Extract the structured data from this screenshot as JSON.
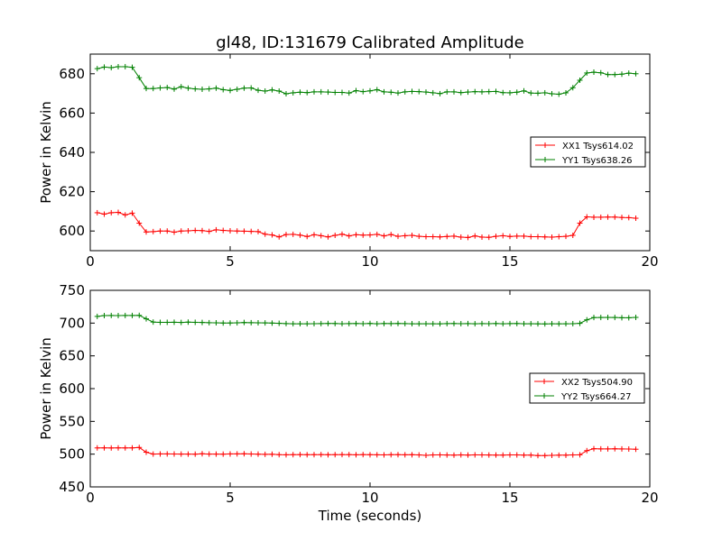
{
  "figure": {
    "title": "gl48, ID:131679 Calibrated Amplitude",
    "colors": {
      "red": "#ff0000",
      "green": "#008000",
      "axes": "#000000"
    }
  },
  "chart_data": [
    {
      "type": "line",
      "title": "gl48, ID:131679 Calibrated Amplitude",
      "xlabel": "",
      "ylabel": "Power in Kelvin",
      "xlim": [
        0,
        20
      ],
      "ylim": [
        590,
        690
      ],
      "xticks": [
        0,
        5,
        10,
        15,
        20
      ],
      "yticks": [
        600,
        620,
        640,
        660,
        680
      ],
      "grid": false,
      "legend_position": "right",
      "series": [
        {
          "name": "XX1 Tsys614.02",
          "color": "#ff0000",
          "marker": "plus",
          "x": [
            0.25,
            0.5,
            0.75,
            1.0,
            1.25,
            1.5,
            1.75,
            2.0,
            2.25,
            2.5,
            2.75,
            3.0,
            3.25,
            3.5,
            3.75,
            4.0,
            4.25,
            4.5,
            4.75,
            5.0,
            5.25,
            5.5,
            5.75,
            6.0,
            6.25,
            6.5,
            6.75,
            7.0,
            7.25,
            7.5,
            7.75,
            8.0,
            8.25,
            8.5,
            8.75,
            9.0,
            9.25,
            9.5,
            9.75,
            10.0,
            10.25,
            10.5,
            10.75,
            11.0,
            11.25,
            11.5,
            11.75,
            12.0,
            12.25,
            12.5,
            12.75,
            13.0,
            13.25,
            13.5,
            13.75,
            14.0,
            14.25,
            14.5,
            14.75,
            15.0,
            15.25,
            15.5,
            15.75,
            16.0,
            16.25,
            16.5,
            16.75,
            17.0,
            17.25,
            17.5,
            17.75,
            18.0,
            18.25,
            18.5,
            18.75,
            19.0,
            19.25,
            19.5
          ],
          "values": [
            609.3,
            608.6,
            609.3,
            609.5,
            608.2,
            609.1,
            604.0,
            599.5,
            599.7,
            600.0,
            600.0,
            599.4,
            600.0,
            600.1,
            600.3,
            600.2,
            599.8,
            600.6,
            600.3,
            600.1,
            600.0,
            599.9,
            599.8,
            599.7,
            598.4,
            598.0,
            597.0,
            598.2,
            598.3,
            597.9,
            597.2,
            598.1,
            597.6,
            597.0,
            597.8,
            598.4,
            597.5,
            598.1,
            597.9,
            598.0,
            598.3,
            597.5,
            598.2,
            597.3,
            597.6,
            597.8,
            597.3,
            597.1,
            597.1,
            597.0,
            597.2,
            597.4,
            596.9,
            596.7,
            597.5,
            596.9,
            596.8,
            597.3,
            597.6,
            597.2,
            597.4,
            597.4,
            597.1,
            597.1,
            597.0,
            596.9,
            597.1,
            597.3,
            597.8,
            604.0,
            607.2,
            607.0,
            607.0,
            607.1,
            607.1,
            606.9,
            606.8,
            606.5
          ]
        },
        {
          "name": "YY1 Tsys638.26",
          "color": "#008000",
          "marker": "plus",
          "x": [
            0.25,
            0.5,
            0.75,
            1.0,
            1.25,
            1.5,
            1.75,
            2.0,
            2.25,
            2.5,
            2.75,
            3.0,
            3.25,
            3.5,
            3.75,
            4.0,
            4.25,
            4.5,
            4.75,
            5.0,
            5.25,
            5.5,
            5.75,
            6.0,
            6.25,
            6.5,
            6.75,
            7.0,
            7.25,
            7.5,
            7.75,
            8.0,
            8.25,
            8.5,
            8.75,
            9.0,
            9.25,
            9.5,
            9.75,
            10.0,
            10.25,
            10.5,
            10.75,
            11.0,
            11.25,
            11.5,
            11.75,
            12.0,
            12.25,
            12.5,
            12.75,
            13.0,
            13.25,
            13.5,
            13.75,
            14.0,
            14.25,
            14.5,
            14.75,
            15.0,
            15.25,
            15.5,
            15.75,
            16.0,
            16.25,
            16.5,
            16.75,
            17.0,
            17.25,
            17.5,
            17.75,
            18.0,
            18.25,
            18.5,
            18.75,
            19.0,
            19.25,
            19.5
          ],
          "values": [
            682.6,
            683.4,
            683.1,
            683.6,
            683.6,
            683.3,
            678.0,
            672.5,
            672.5,
            672.8,
            673.0,
            672.2,
            673.4,
            672.7,
            672.3,
            672.1,
            672.3,
            672.7,
            671.9,
            671.5,
            672.1,
            672.7,
            672.8,
            671.6,
            671.2,
            671.8,
            671.2,
            669.8,
            670.3,
            670.6,
            670.4,
            670.8,
            670.8,
            670.7,
            670.5,
            670.5,
            670.2,
            671.4,
            670.9,
            671.3,
            671.9,
            670.8,
            670.6,
            670.2,
            670.8,
            671.0,
            670.9,
            670.7,
            670.3,
            669.9,
            670.8,
            670.8,
            670.4,
            670.7,
            670.9,
            670.8,
            670.9,
            671.0,
            670.4,
            670.3,
            670.6,
            671.3,
            670.2,
            670.1,
            670.3,
            669.8,
            669.6,
            670.3,
            672.9,
            676.7,
            680.4,
            680.8,
            680.5,
            679.6,
            679.6,
            679.8,
            680.3,
            680.0
          ]
        }
      ]
    },
    {
      "type": "line",
      "title": "",
      "xlabel": "Time (seconds)",
      "ylabel": "Power in Kelvin",
      "xlim": [
        0,
        20
      ],
      "ylim": [
        450,
        750
      ],
      "xticks": [
        0,
        5,
        10,
        15,
        20
      ],
      "yticks": [
        450,
        500,
        550,
        600,
        650,
        700,
        750
      ],
      "grid": false,
      "legend_position": "right",
      "series": [
        {
          "name": "XX2 Tsys504.90",
          "color": "#ff0000",
          "marker": "plus",
          "x": [
            0.25,
            0.5,
            0.75,
            1.0,
            1.25,
            1.5,
            1.75,
            2.0,
            2.25,
            2.5,
            2.75,
            3.0,
            3.25,
            3.5,
            3.75,
            4.0,
            4.25,
            4.5,
            4.75,
            5.0,
            5.25,
            5.5,
            5.75,
            6.0,
            6.25,
            6.5,
            6.75,
            7.0,
            7.25,
            7.5,
            7.75,
            8.0,
            8.25,
            8.5,
            8.75,
            9.0,
            9.25,
            9.5,
            9.75,
            10.0,
            10.25,
            10.5,
            10.75,
            11.0,
            11.25,
            11.5,
            11.75,
            12.0,
            12.25,
            12.5,
            12.75,
            13.0,
            13.25,
            13.5,
            13.75,
            14.0,
            14.25,
            14.5,
            14.75,
            15.0,
            15.25,
            15.5,
            15.75,
            16.0,
            16.25,
            16.5,
            16.75,
            17.0,
            17.25,
            17.5,
            17.75,
            18.0,
            18.25,
            18.5,
            18.75,
            19.0,
            19.25,
            19.5
          ],
          "values": [
            509.5,
            509.6,
            509.4,
            509.6,
            509.5,
            509.6,
            510.2,
            503.0,
            500.1,
            500.3,
            500.3,
            500.2,
            500.1,
            500.1,
            500.0,
            500.6,
            500.1,
            500.1,
            500.0,
            500.3,
            500.4,
            500.5,
            500.2,
            500.0,
            499.7,
            499.8,
            499.2,
            499.0,
            499.2,
            499.3,
            499.1,
            499.2,
            499.3,
            499.1,
            499.2,
            499.3,
            499.3,
            499.0,
            499.3,
            499.1,
            499.0,
            498.9,
            499.1,
            499.2,
            499.0,
            499.1,
            498.8,
            498.2,
            498.8,
            498.9,
            498.7,
            498.5,
            498.9,
            498.6,
            498.9,
            498.8,
            498.7,
            498.6,
            498.6,
            498.8,
            498.8,
            498.5,
            498.6,
            497.8,
            497.8,
            498.2,
            498.4,
            498.4,
            498.8,
            499.0,
            505.3,
            508.3,
            508.0,
            508.0,
            508.2,
            507.9,
            507.8,
            507.5
          ]
        },
        {
          "name": "YY2 Tsys664.27",
          "color": "#008000",
          "marker": "plus",
          "x": [
            0.25,
            0.5,
            0.75,
            1.0,
            1.25,
            1.5,
            1.75,
            2.0,
            2.25,
            2.5,
            2.75,
            3.0,
            3.25,
            3.5,
            3.75,
            4.0,
            4.25,
            4.5,
            4.75,
            5.0,
            5.25,
            5.5,
            5.75,
            6.0,
            6.25,
            6.5,
            6.75,
            7.0,
            7.25,
            7.5,
            7.75,
            8.0,
            8.25,
            8.5,
            8.75,
            9.0,
            9.25,
            9.5,
            9.75,
            10.0,
            10.25,
            10.5,
            10.75,
            11.0,
            11.25,
            11.5,
            11.75,
            12.0,
            12.25,
            12.5,
            12.75,
            13.0,
            13.25,
            13.5,
            13.75,
            14.0,
            14.25,
            14.5,
            14.75,
            15.0,
            15.25,
            15.5,
            15.75,
            16.0,
            16.25,
            16.5,
            16.75,
            17.0,
            17.25,
            17.5,
            17.75,
            18.0,
            18.25,
            18.5,
            18.75,
            19.0,
            19.25,
            19.5
          ],
          "values": [
            710.2,
            711.5,
            711.6,
            711.5,
            711.6,
            711.6,
            711.8,
            706.5,
            701.6,
            701.2,
            701.2,
            701.3,
            701.0,
            701.5,
            701.2,
            701.0,
            700.6,
            700.4,
            700.1,
            700.2,
            700.4,
            700.9,
            700.6,
            700.4,
            700.3,
            700.0,
            699.7,
            699.2,
            699.0,
            699.0,
            699.0,
            699.1,
            699.2,
            699.4,
            699.3,
            699.0,
            699.2,
            699.3,
            699.1,
            699.5,
            699.0,
            699.3,
            699.2,
            699.4,
            699.2,
            699.0,
            699.0,
            699.1,
            699.0,
            698.9,
            699.2,
            699.3,
            699.1,
            699.2,
            699.0,
            699.2,
            699.1,
            699.3,
            699.0,
            699.2,
            699.3,
            699.0,
            699.1,
            698.9,
            698.8,
            699.0,
            698.9,
            699.0,
            699.1,
            699.6,
            705.0,
            708.5,
            708.6,
            708.7,
            708.6,
            708.2,
            708.1,
            708.7
          ]
        }
      ]
    }
  ]
}
